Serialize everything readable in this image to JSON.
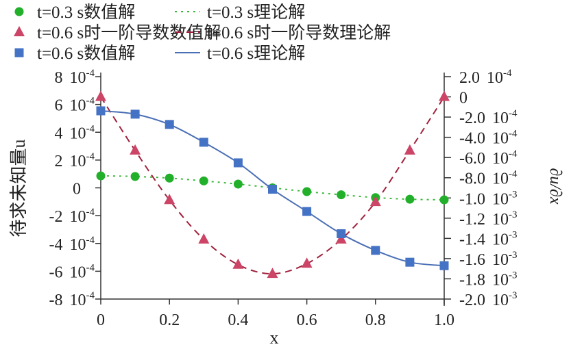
{
  "chart_data": {
    "type": "line",
    "title": "",
    "xlabel": "x",
    "ylabel": "待求未知量u",
    "y2label": "∂u/∂x",
    "xlim": [
      0,
      1.0
    ],
    "ylim": [
      -0.0008,
      0.0008
    ],
    "y2lim": [
      -0.002,
      0.0002
    ],
    "grid": false,
    "legend_position": "top",
    "x_ticks": [
      "0",
      "0.2",
      "0.4",
      "0.6",
      "0.8",
      "1.0"
    ],
    "y_ticks": [
      {
        "m": "8",
        "e": "10",
        "p": "-4",
        "v": 0.0008
      },
      {
        "m": "6",
        "e": "10",
        "p": "-4",
        "v": 0.0006
      },
      {
        "m": "4",
        "e": "10",
        "p": "-4",
        "v": 0.0004
      },
      {
        "m": "2",
        "e": "10",
        "p": "-4",
        "v": 0.0002
      },
      {
        "m": "0",
        "e": "",
        "p": "",
        "v": 0
      },
      {
        "m": "-2",
        "e": "10",
        "p": "-4",
        "v": -0.0002
      },
      {
        "m": "-4",
        "e": "10",
        "p": "-4",
        "v": -0.0004
      },
      {
        "m": "-6",
        "e": "10",
        "p": "-4",
        "v": -0.0006
      },
      {
        "m": "-8",
        "e": "10",
        "p": "-4",
        "v": -0.0008
      }
    ],
    "y2_ticks": [
      {
        "m": "2.0",
        "e": "10",
        "p": "-4",
        "v": 0.0002
      },
      {
        "m": "0",
        "e": "",
        "p": "",
        "v": 0
      },
      {
        "m": "-2.0",
        "e": "10",
        "p": "-4",
        "v": -0.0002
      },
      {
        "m": "-4.0",
        "e": "10",
        "p": "-4",
        "v": -0.0004
      },
      {
        "m": "-6.0",
        "e": "10",
        "p": "-4",
        "v": -0.0006
      },
      {
        "m": "-8.0",
        "e": "10",
        "p": "-4",
        "v": -0.0008
      },
      {
        "m": "-1.0",
        "e": "10",
        "p": "-3",
        "v": -0.001
      },
      {
        "m": "-1.2",
        "e": "10",
        "p": "-3",
        "v": -0.0012
      },
      {
        "m": "-1.4",
        "e": "10",
        "p": "-3",
        "v": -0.0014
      },
      {
        "m": "-1.6",
        "e": "10",
        "p": "-3",
        "v": -0.0016
      },
      {
        "m": "-1.8",
        "e": "10",
        "p": "-3",
        "v": -0.0018
      },
      {
        "m": "-2.0",
        "e": "10",
        "p": "-3",
        "v": -0.002
      }
    ],
    "x": [
      0,
      0.1,
      0.2,
      0.3,
      0.4,
      0.5,
      0.6,
      0.7,
      0.8,
      0.9,
      1.0
    ],
    "series": [
      {
        "name": "t=0.3 s数值解",
        "kind": "marker",
        "marker": "circle",
        "axis": "left",
        "color": "#22b02a",
        "values": [
          8.6e-05,
          8.2e-05,
          7e-05,
          5e-05,
          2.7e-05,
          0,
          -2.7e-05,
          -5e-05,
          -7e-05,
          -8.2e-05,
          -8.6e-05
        ]
      },
      {
        "name": "t=0.3 s理论解",
        "kind": "line",
        "dash": "dotted",
        "axis": "left",
        "color": "#3cb83c",
        "values": [
          8.6e-05,
          8.2e-05,
          7e-05,
          5e-05,
          2.7e-05,
          0,
          -2.7e-05,
          -5e-05,
          -7e-05,
          -8.2e-05,
          -8.6e-05
        ]
      },
      {
        "name": "t=0.6 s时一阶导数数值解",
        "kind": "marker",
        "marker": "triangle",
        "axis": "right",
        "color": "#cc4466",
        "values": [
          0,
          -0.00053,
          -0.00102,
          -0.00141,
          -0.00166,
          -0.00175,
          -0.00165,
          -0.00141,
          -0.00104,
          -0.00053,
          0
        ]
      },
      {
        "name": "t=0.6 s时一阶导数理论解",
        "kind": "line",
        "dash": "dashed",
        "axis": "right",
        "color": "#a0203c",
        "values": [
          0,
          -0.00053,
          -0.00102,
          -0.00141,
          -0.00166,
          -0.00175,
          -0.00165,
          -0.00141,
          -0.00104,
          -0.00053,
          0
        ]
      },
      {
        "name": "t=0.6 s数值解",
        "kind": "marker",
        "marker": "square",
        "axis": "left",
        "color": "#4472c4",
        "values": [
          0.000554,
          0.00053,
          0.000456,
          0.000328,
          0.00018,
          -1e-05,
          -0.00017,
          -0.00033,
          -0.00045,
          -0.000535,
          -0.00056
        ]
      },
      {
        "name": "t=0.6 s理论解",
        "kind": "line",
        "dash": "solid",
        "axis": "left",
        "color": "#4a6fb5",
        "values": [
          0.000554,
          0.00053,
          0.000456,
          0.000328,
          0.00018,
          -1e-05,
          -0.00017,
          -0.00033,
          -0.00045,
          -0.000535,
          -0.00056
        ]
      }
    ]
  }
}
